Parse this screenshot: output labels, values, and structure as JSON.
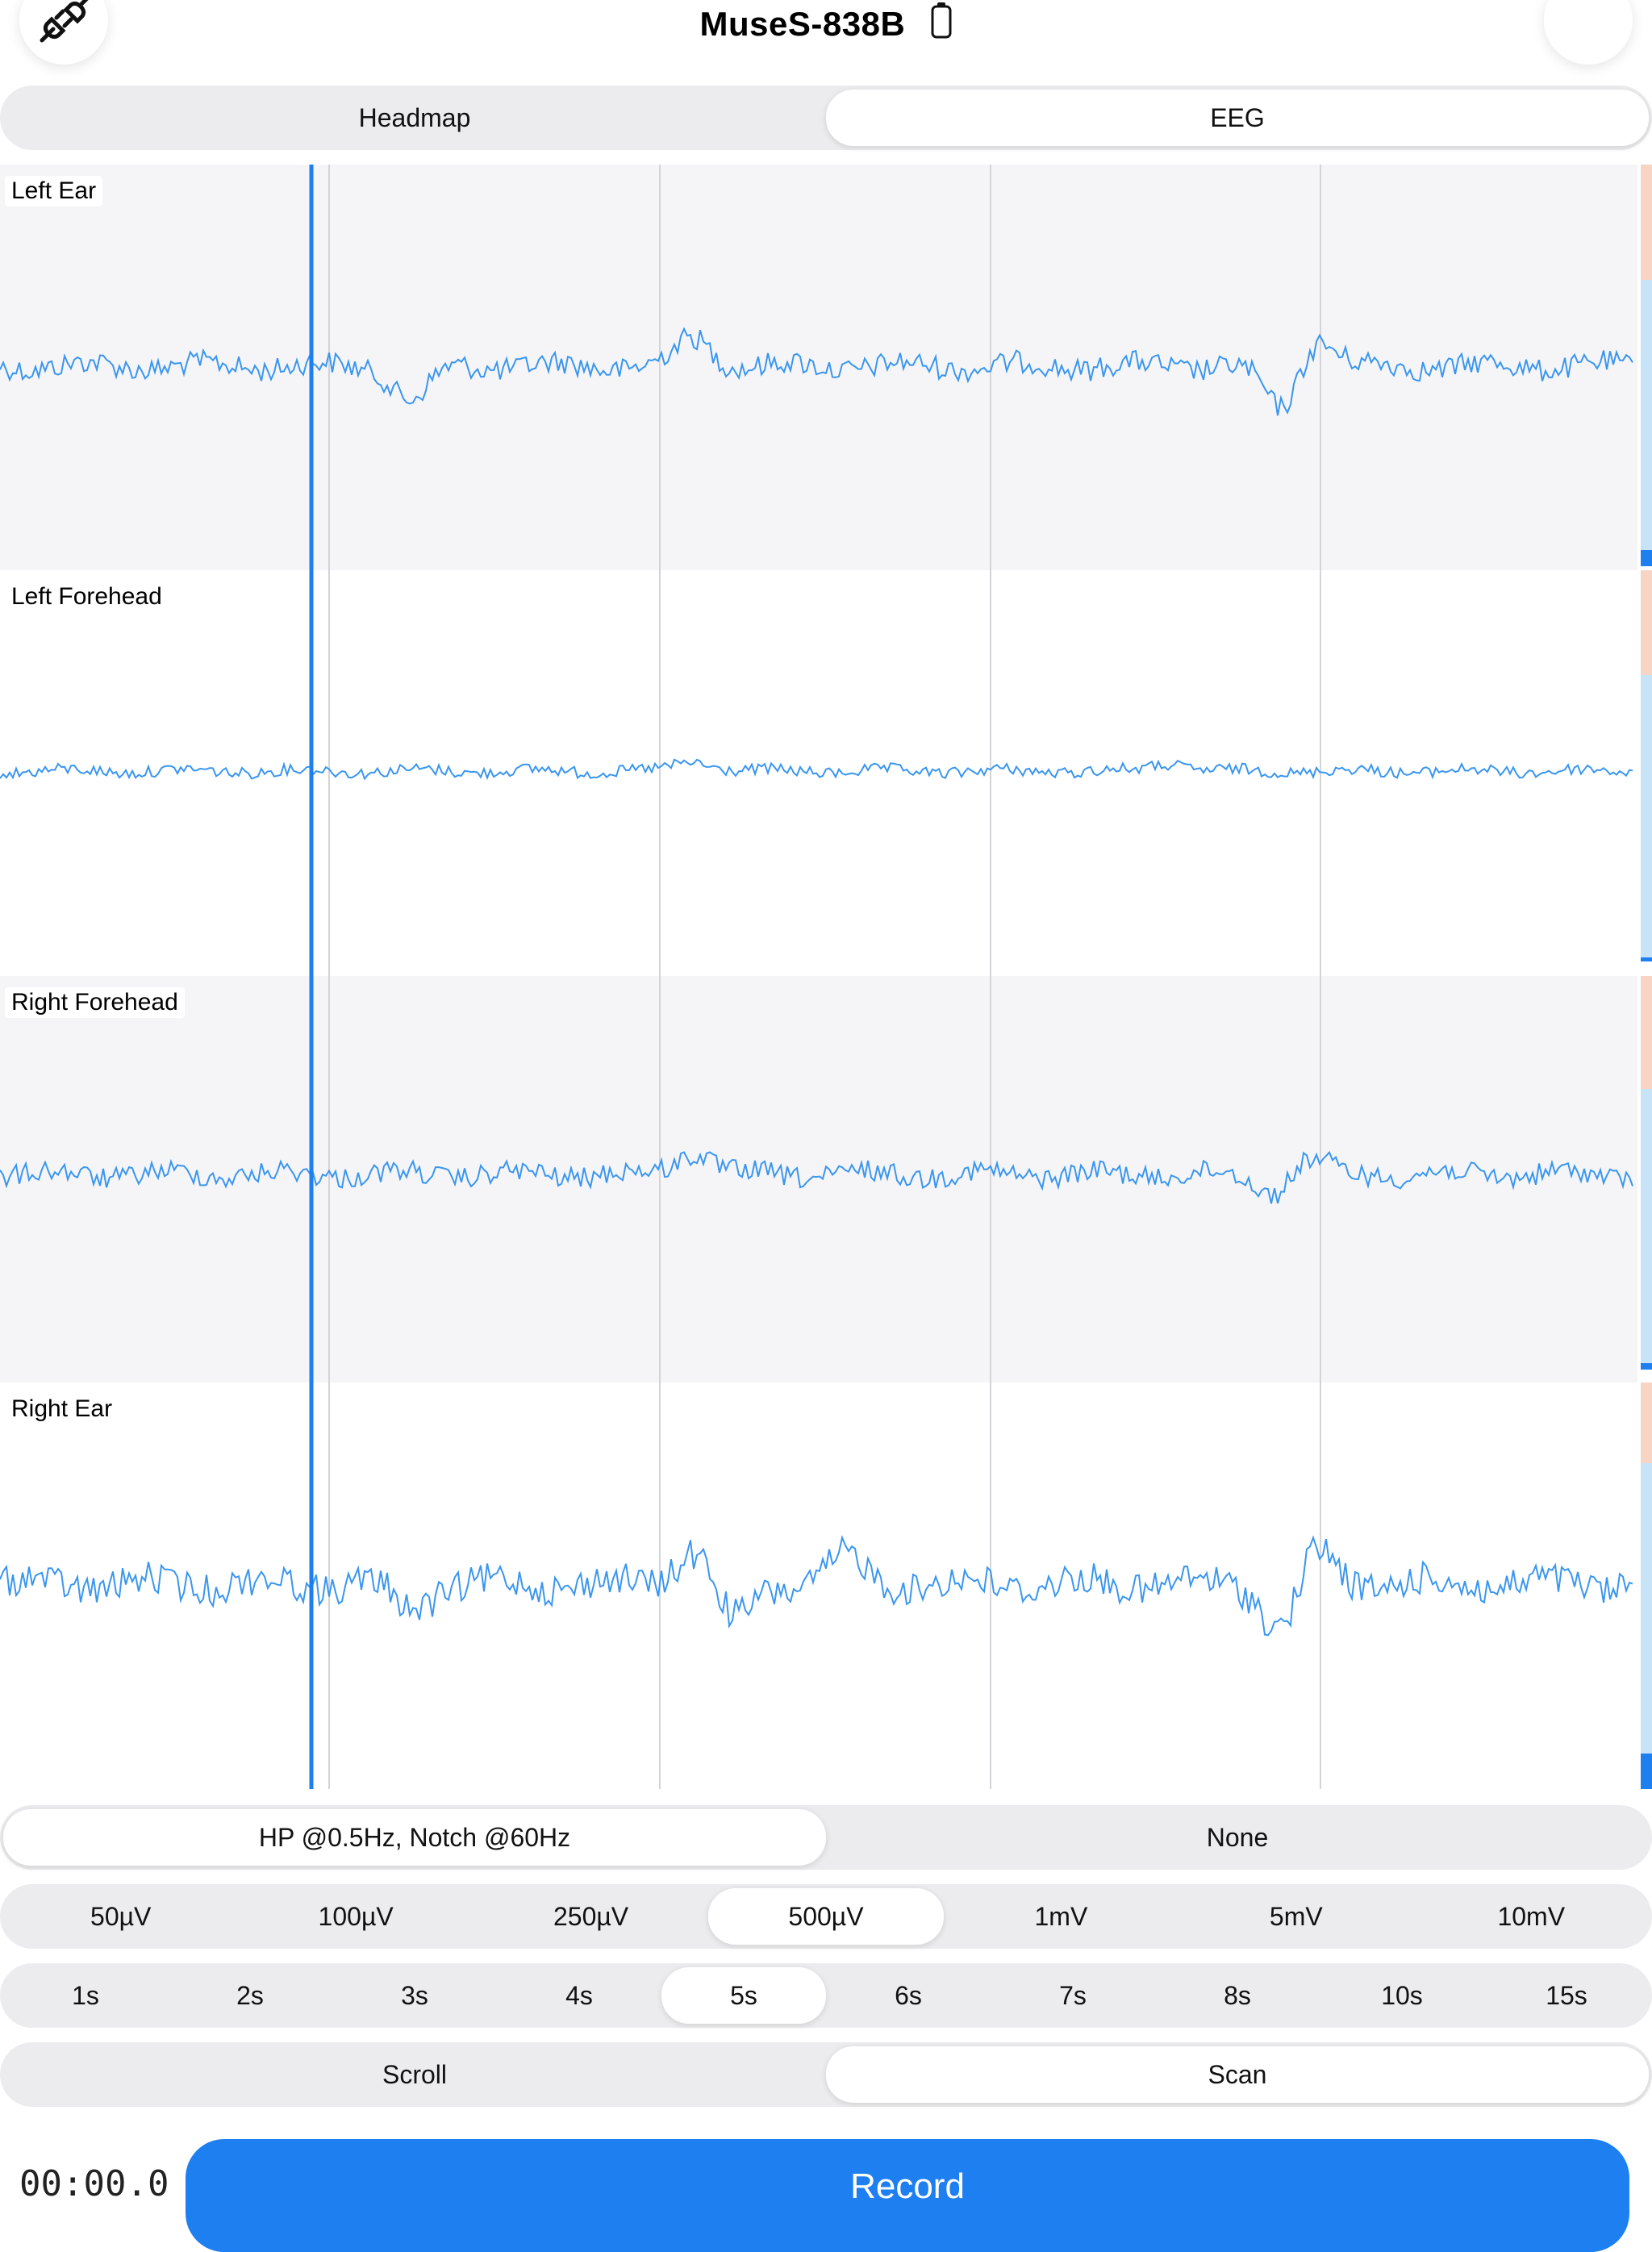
{
  "header": {
    "device_name": "MuseS-838B",
    "disconnect_icon": "plug-disconnect-icon",
    "battery_icon": "battery-icon",
    "settings_icon": "settings-button"
  },
  "view_tabs": {
    "options": [
      "Headmap",
      "EEG"
    ],
    "selected": "EEG"
  },
  "channels": [
    {
      "label": "Left Ear"
    },
    {
      "label": "Left Forehead"
    },
    {
      "label": "Right Forehead"
    },
    {
      "label": "Right Ear"
    }
  ],
  "filter": {
    "options": [
      "HP @0.5Hz, Notch @60Hz",
      "None"
    ],
    "selected": "HP @0.5Hz, Notch @60Hz"
  },
  "scale": {
    "options": [
      "50µV",
      "100µV",
      "250µV",
      "500µV",
      "1mV",
      "5mV",
      "10mV"
    ],
    "selected": "500µV"
  },
  "time_window": {
    "options": [
      "1s",
      "2s",
      "3s",
      "4s",
      "5s",
      "6s",
      "7s",
      "8s",
      "10s",
      "15s"
    ],
    "selected": "5s"
  },
  "display_mode": {
    "options": [
      "Scroll",
      "Scan"
    ],
    "selected": "Scan"
  },
  "recording": {
    "timer": "00:00.0",
    "record_label": "Record"
  },
  "colors": {
    "accent": "#1e7ff0",
    "trace": "#3a96ef",
    "grid": "#d4d4d8",
    "shaded_row": "#f5f5f7",
    "strip_orange": "#f7d4c4",
    "strip_blue": "#c6e3f7"
  }
}
